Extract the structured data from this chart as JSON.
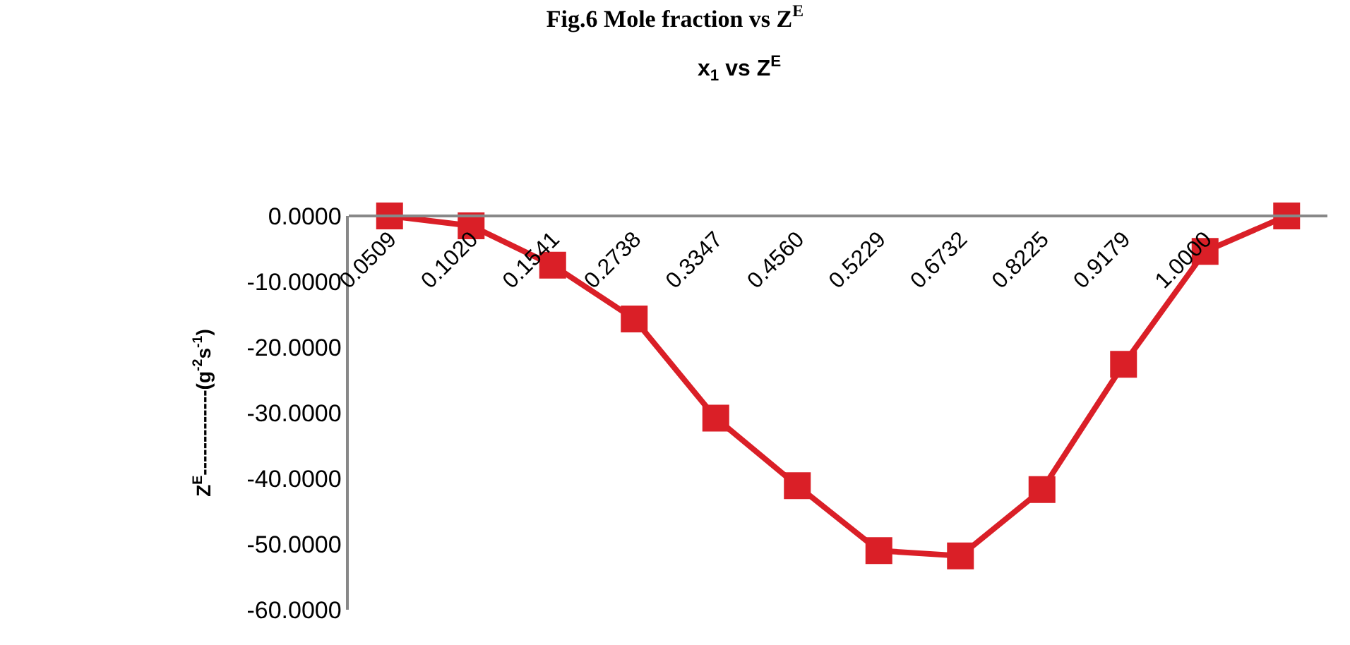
{
  "chart_data": {
    "type": "line",
    "title": "Fig.6 Mole fraction vs Z$^{E}$",
    "subtitle": "x$_{1}$ vs Z$^{E}$",
    "ylabel": "Z$^{E}$-------------(g$^{-2}$s$^{-1}$)",
    "categories": [
      "0.0509",
      "0.1020",
      "0.1541",
      "0.2738",
      "0.3347",
      "0.4560",
      "0.5229",
      "0.6732",
      "0.8225",
      "0.9179",
      "1.0000",
      null
    ],
    "series": [
      {
        "color": "#da1f27",
        "values": [
          0,
          -1.5,
          -7.5,
          -15.7,
          -30.8,
          -41.1,
          -51.0,
          -51.8,
          -41.7,
          -22.6,
          -5.4,
          0
        ]
      }
    ],
    "ylim": [
      -60,
      0
    ],
    "yticks": [
      {
        "value": 0,
        "label": "0.0000"
      },
      {
        "value": -10,
        "label": "-10.0000"
      },
      {
        "value": -20,
        "label": "-20.0000"
      },
      {
        "value": -30,
        "label": "-30.0000"
      },
      {
        "value": -40,
        "label": "-40.0000"
      },
      {
        "value": -50,
        "label": "-50.0000"
      },
      {
        "value": -60,
        "label": "-60.0000"
      }
    ],
    "marker": "square",
    "line_style": "solid",
    "grid": false
  }
}
